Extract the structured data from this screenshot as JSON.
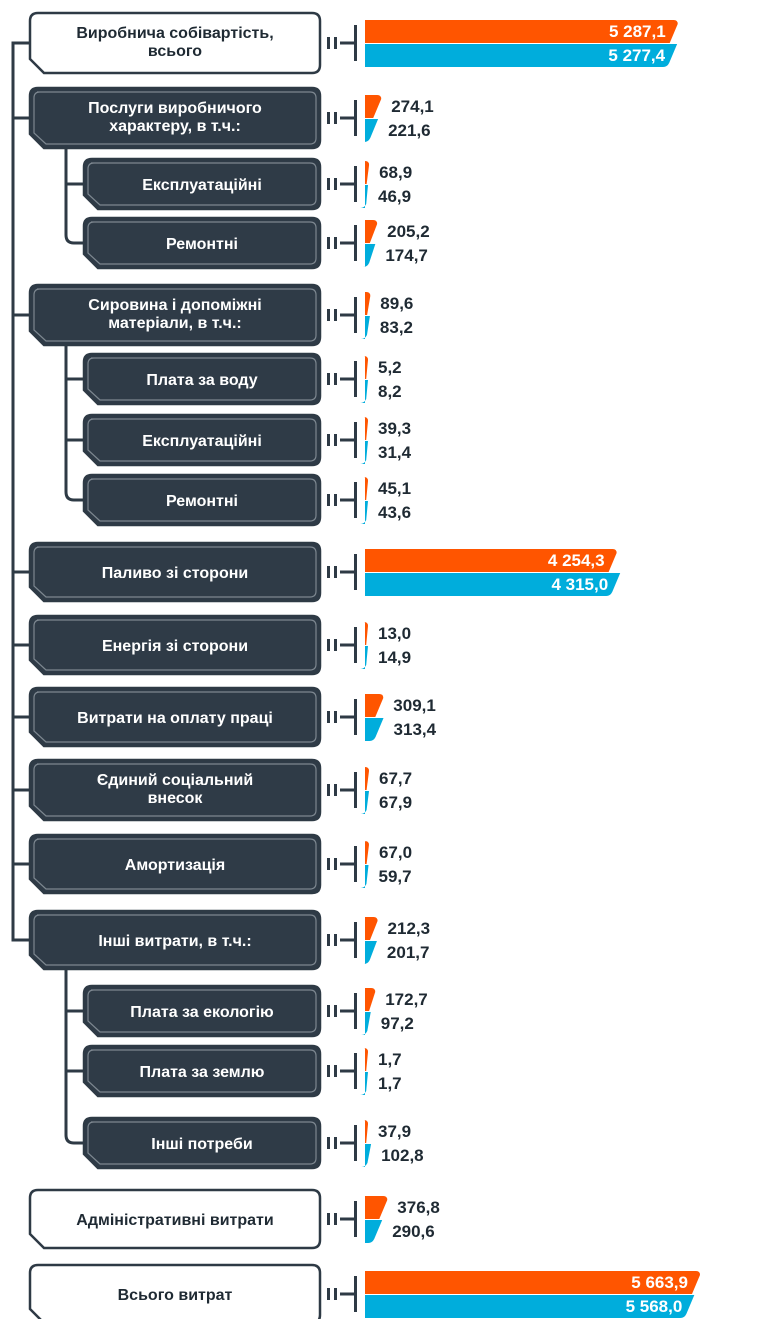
{
  "chart_data": {
    "type": "bar",
    "orientation": "horizontal",
    "title": "",
    "xlabel": "",
    "ylabel": "",
    "colors": {
      "series_1": "#FF5500",
      "series_2": "#00ADDC"
    },
    "categories": [
      "Виробнича собівартість, всього",
      "Послуги виробничого характеру, в т.ч.:",
      "Експлуатаційні",
      "Ремонтні",
      "Сировина і допоміжні матеріали, в т.ч.:",
      "Плата за воду",
      "Експлуатаційні",
      "Ремонтні",
      "Паливо зі сторони",
      "Енергія зі сторони",
      "Витрати на оплату праці",
      "Єдиний соціальний внесок",
      "Амортизація",
      "Інші витрати, в т.ч.:",
      "Плата за екологію",
      "Плата за землю",
      "Інші потреби",
      "Адміністративні витрати",
      "Всього витрат"
    ],
    "series": [
      {
        "values": [
          5287.1,
          274.1,
          68.9,
          205.2,
          89.6,
          5.2,
          39.3,
          45.1,
          4254.3,
          13.0,
          309.1,
          67.7,
          67.0,
          212.3,
          172.7,
          1.7,
          37.9,
          376.8,
          5663.9
        ],
        "labels": [
          "5 287,1",
          "274,1",
          "68,9",
          "205,2",
          "89,6",
          "5,2",
          "39,3",
          "45,1",
          "4 254,3",
          "13,0",
          "309,1",
          "67,7",
          "67,0",
          "212,3",
          "172,7",
          "1,7",
          "37,9",
          "376,8",
          "5 663,9"
        ]
      },
      {
        "values": [
          5277.4,
          221.6,
          46.9,
          174.7,
          83.2,
          8.2,
          31.4,
          43.6,
          4315.0,
          14.9,
          313.4,
          67.9,
          59.7,
          201.7,
          97.2,
          1.7,
          102.8,
          290.6,
          5568.0
        ],
        "labels": [
          "5 277,4",
          "221,6",
          "46,9",
          "174,7",
          "83,2",
          "8,2",
          "31,4",
          "43,6",
          "4 315,0",
          "14,9",
          "313,4",
          "67,9",
          "59,7",
          "201,7",
          "97,2",
          "1,7",
          "102,8",
          "290,6",
          "5 568,0"
        ]
      }
    ],
    "category_labels": [
      [
        "Виробнича собівартість,",
        "всього"
      ],
      [
        "Послуги виробничого",
        "характеру, в т.ч.:"
      ],
      [
        "Експлуатаційні"
      ],
      [
        "Ремонтні"
      ],
      [
        "Сировина і допоміжні",
        "матеріали, в т.ч.:"
      ],
      [
        "Плата за воду"
      ],
      [
        "Експлуатаційні"
      ],
      [
        "Ремонтні"
      ],
      [
        "Паливо зі сторони"
      ],
      [
        "Енергія зі сторони"
      ],
      [
        "Витрати на оплату праці"
      ],
      [
        "Єдиний соціальний",
        "внесок"
      ],
      [
        "Амортизація"
      ],
      [
        "Інші витрати, в т.ч.:"
      ],
      [
        "Плата за екологію"
      ],
      [
        "Плата за землю"
      ],
      [
        "Інші потреби"
      ],
      [
        "Адміністративні витрати"
      ],
      [
        "Всього витрат"
      ]
    ],
    "category_level": [
      0,
      1,
      2,
      2,
      1,
      2,
      2,
      2,
      1,
      1,
      1,
      1,
      1,
      1,
      2,
      2,
      2,
      0,
      0
    ],
    "box_style": [
      "light",
      "dark",
      "dark",
      "dark",
      "dark",
      "dark",
      "dark",
      "dark",
      "dark",
      "dark",
      "dark",
      "dark",
      "dark",
      "dark",
      "dark",
      "dark",
      "dark",
      "light",
      "light"
    ]
  }
}
